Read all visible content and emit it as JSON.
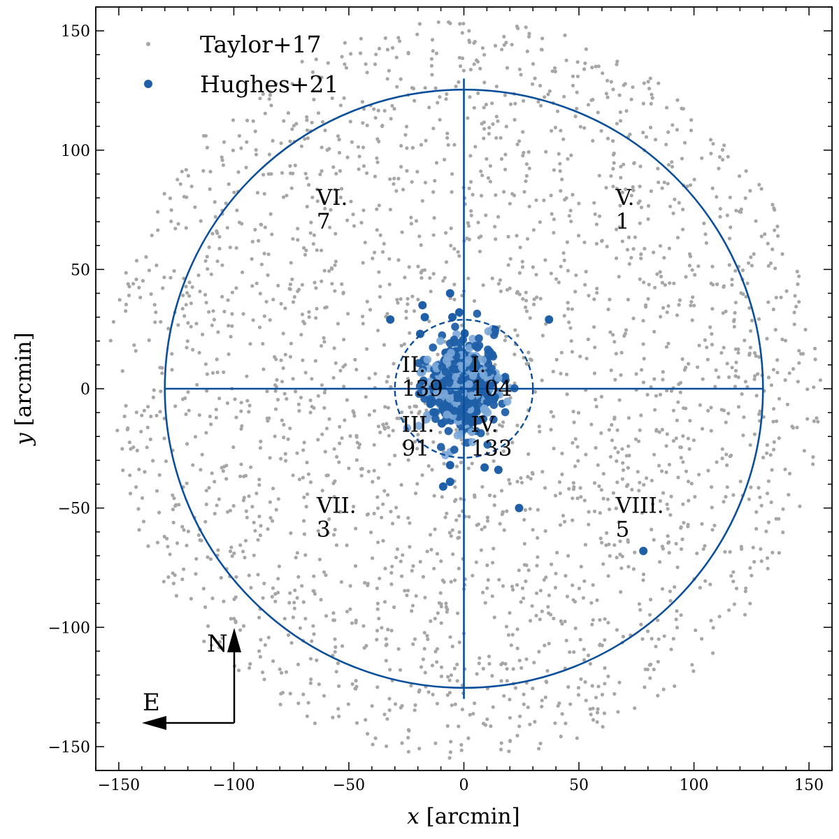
{
  "chart_data": {
    "type": "scatter",
    "xlabel": {
      "var": "x",
      "unit": " [arcmin]"
    },
    "ylabel": {
      "var": "y",
      "unit": " [arcmin]"
    },
    "xlim": [
      -160,
      160
    ],
    "ylim": [
      -160,
      160
    ],
    "xticks": [
      -150,
      -100,
      -50,
      0,
      50,
      100,
      150
    ],
    "yticks": [
      -150,
      -100,
      -50,
      0,
      50,
      100,
      150
    ],
    "xtick_labels": [
      "−150",
      "−100",
      "−50",
      "0",
      "50",
      "100",
      "150"
    ],
    "ytick_labels": [
      "−150",
      "−100",
      "−50",
      "0",
      "50",
      "100",
      "150"
    ],
    "grid": false,
    "legend_position": "top-left",
    "series": [
      {
        "name": "Taylor+17",
        "color": "#a6a6a6",
        "marker": "small-dot"
      },
      {
        "name": "Hughes+21",
        "color": "#1f5fa8",
        "marker": "dot"
      }
    ],
    "annotations": {
      "outer_circle_radius": 130,
      "inner_circle_radius": 30,
      "outer_style": "solid",
      "inner_style": "dashed",
      "line_color": "#0b4f9c",
      "divider_lines": [
        {
          "from": [
            -130,
            0
          ],
          "to": [
            130,
            0
          ]
        },
        {
          "from": [
            0,
            -130
          ],
          "to": [
            0,
            130
          ]
        }
      ],
      "regions": [
        {
          "numeral": "I.",
          "count": "104",
          "x": 3,
          "y": 7
        },
        {
          "numeral": "II.",
          "count": "139",
          "x": -27,
          "y": 7
        },
        {
          "numeral": "III.",
          "count": "91",
          "x": -27,
          "y": -18
        },
        {
          "numeral": "IV.",
          "count": "133",
          "x": 3,
          "y": -18
        },
        {
          "numeral": "V.",
          "count": "1",
          "x": 66,
          "y": 77
        },
        {
          "numeral": "VI.",
          "count": "7",
          "x": -64,
          "y": 77
        },
        {
          "numeral": "VII.",
          "count": "3",
          "x": -64,
          "y": -52
        },
        {
          "numeral": "VIII.",
          "count": "5",
          "x": 66,
          "y": -52
        }
      ]
    },
    "hughes21_outliers": [
      [
        -32,
        29
      ],
      [
        -6,
        40
      ],
      [
        -18,
        35
      ],
      [
        -17,
        30
      ],
      [
        37,
        29
      ],
      [
        -9,
        -41
      ],
      [
        -6,
        -39
      ],
      [
        9,
        -33
      ],
      [
        15,
        -34
      ],
      [
        -6,
        -32
      ],
      [
        24,
        -50
      ],
      [
        78,
        -68
      ],
      [
        -19,
        23
      ],
      [
        -2,
        32
      ],
      [
        -5,
        30
      ]
    ],
    "compass": {
      "north": "N",
      "east": "E"
    }
  }
}
